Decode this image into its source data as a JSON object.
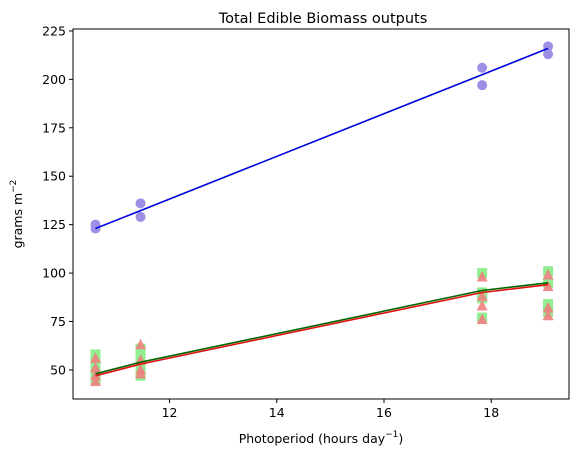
{
  "chart_data": {
    "type": "scatter",
    "title": "Total Edible Biomass outputs",
    "xlabel_main": "Photoperiod (hours day",
    "xlabel_sup": "−1",
    "xlabel_tail": ")",
    "ylabel_main": "grams m",
    "ylabel_sup": "−2",
    "xlim": [
      10.2,
      19.45
    ],
    "ylim": [
      35,
      226
    ],
    "xticks": [
      12,
      14,
      16,
      18
    ],
    "yticks": [
      50,
      75,
      100,
      125,
      150,
      175,
      200,
      225
    ],
    "grid": false,
    "legend": "none",
    "series": [
      {
        "marker": "circle",
        "color": "#9b8fe6",
        "points": [
          [
            10.62,
            125
          ],
          [
            10.62,
            123
          ],
          [
            11.46,
            136
          ],
          [
            11.46,
            129
          ],
          [
            17.83,
            206
          ],
          [
            17.83,
            197
          ],
          [
            19.06,
            217
          ],
          [
            19.06,
            213
          ]
        ]
      },
      {
        "marker": "square",
        "color": "#90ee90",
        "points": [
          [
            10.62,
            58
          ],
          [
            10.62,
            53
          ],
          [
            10.62,
            49
          ],
          [
            10.62,
            45
          ],
          [
            11.46,
            61
          ],
          [
            11.46,
            57
          ],
          [
            11.46,
            52
          ],
          [
            11.46,
            47
          ],
          [
            17.83,
            100
          ],
          [
            17.83,
            90
          ],
          [
            17.83,
            87
          ],
          [
            17.83,
            77
          ],
          [
            19.06,
            101
          ],
          [
            19.06,
            95
          ],
          [
            19.06,
            84
          ],
          [
            19.06,
            80
          ]
        ]
      },
      {
        "marker": "triangle",
        "color": "#f08080",
        "points": [
          [
            10.62,
            56
          ],
          [
            10.62,
            51
          ],
          [
            10.62,
            47
          ],
          [
            10.62,
            44
          ],
          [
            11.46,
            63
          ],
          [
            11.46,
            55
          ],
          [
            11.46,
            50
          ],
          [
            11.46,
            48
          ],
          [
            17.83,
            98
          ],
          [
            17.83,
            88
          ],
          [
            17.83,
            83
          ],
          [
            17.83,
            76
          ],
          [
            19.06,
            99
          ],
          [
            19.06,
            93
          ],
          [
            19.06,
            82
          ],
          [
            19.06,
            78
          ]
        ]
      }
    ],
    "lines": [
      {
        "color": "#0000e0",
        "points": [
          [
            10.62,
            123
          ],
          [
            19.06,
            216
          ]
        ]
      },
      {
        "color": "#006400",
        "points": [
          [
            10.62,
            48
          ],
          [
            11.46,
            54
          ],
          [
            17.83,
            91
          ],
          [
            19.06,
            95
          ]
        ]
      },
      {
        "color": "#e01010",
        "points": [
          [
            10.62,
            47
          ],
          [
            11.46,
            53
          ],
          [
            17.83,
            90
          ],
          [
            19.06,
            94
          ]
        ]
      }
    ]
  }
}
